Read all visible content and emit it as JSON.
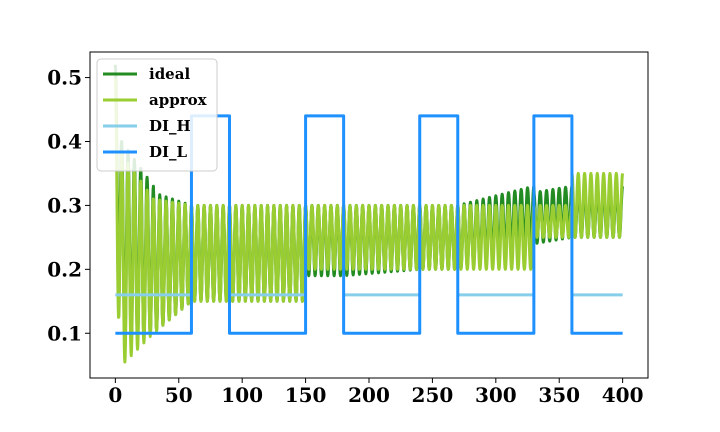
{
  "chart_data": {
    "type": "line",
    "title": "",
    "xlabel": "",
    "ylabel": "",
    "xlim": [
      -20,
      420
    ],
    "ylim": [
      0.03,
      0.54
    ],
    "xticks": [
      0,
      50,
      100,
      150,
      200,
      250,
      300,
      350,
      400
    ],
    "yticks": [
      0.1,
      0.2,
      0.3,
      0.4,
      0.5
    ],
    "grid": false,
    "legend_position": "top-left",
    "series": [
      {
        "name": "ideal",
        "color": "#228B22",
        "kind": "oscillation",
        "period": 5,
        "segments": [
          {
            "x": [
              0,
              5
            ],
            "low": [
              0.3,
              0.08
            ],
            "high": [
              0.52,
              0.4
            ]
          },
          {
            "x": [
              5,
              30
            ],
            "low": [
              0.08,
              0.1
            ],
            "high": [
              0.4,
              0.33
            ]
          },
          {
            "x": [
              30,
              60
            ],
            "low": [
              0.1,
              0.15
            ],
            "high": [
              0.32,
              0.3
            ]
          },
          {
            "x": [
              60,
              90
            ],
            "low": [
              0.15,
              0.15
            ],
            "high": [
              0.3,
              0.3
            ]
          },
          {
            "x": [
              90,
              150
            ],
            "low": [
              0.15,
              0.15
            ],
            "high": [
              0.3,
              0.3
            ]
          },
          {
            "x": [
              150,
              180
            ],
            "low": [
              0.19,
              0.19
            ],
            "high": [
              0.3,
              0.3
            ]
          },
          {
            "x": [
              180,
              240
            ],
            "low": [
              0.19,
              0.2
            ],
            "high": [
              0.3,
              0.3
            ]
          },
          {
            "x": [
              240,
              270
            ],
            "low": [
              0.2,
              0.2
            ],
            "high": [
              0.3,
              0.3
            ]
          },
          {
            "x": [
              270,
              330
            ],
            "low": [
              0.2,
              0.24
            ],
            "high": [
              0.3,
              0.33
            ]
          },
          {
            "x": [
              330,
              360
            ],
            "low": [
              0.24,
              0.25
            ],
            "high": [
              0.32,
              0.33
            ]
          },
          {
            "x": [
              360,
              400
            ],
            "low": [
              0.25,
              0.25
            ],
            "high": [
              0.33,
              0.33
            ]
          }
        ]
      },
      {
        "name": "approx",
        "color": "#9ACD32",
        "kind": "oscillation",
        "period": 5,
        "segments": [
          {
            "x": [
              0,
              5
            ],
            "low": [
              0.2,
              0.05
            ],
            "high": [
              0.5,
              0.38
            ]
          },
          {
            "x": [
              5,
              30
            ],
            "low": [
              0.05,
              0.1
            ],
            "high": [
              0.38,
              0.31
            ]
          },
          {
            "x": [
              30,
              60
            ],
            "low": [
              0.1,
              0.15
            ],
            "high": [
              0.31,
              0.3
            ]
          },
          {
            "x": [
              60,
              90
            ],
            "low": [
              0.15,
              0.15
            ],
            "high": [
              0.3,
              0.3
            ]
          },
          {
            "x": [
              90,
              150
            ],
            "low": [
              0.15,
              0.15
            ],
            "high": [
              0.3,
              0.3
            ]
          },
          {
            "x": [
              150,
              180
            ],
            "low": [
              0.2,
              0.2
            ],
            "high": [
              0.3,
              0.3
            ]
          },
          {
            "x": [
              180,
              240
            ],
            "low": [
              0.2,
              0.2
            ],
            "high": [
              0.3,
              0.3
            ]
          },
          {
            "x": [
              240,
              330
            ],
            "low": [
              0.2,
              0.2
            ],
            "high": [
              0.3,
              0.3
            ]
          },
          {
            "x": [
              330,
              360
            ],
            "low": [
              0.25,
              0.25
            ],
            "high": [
              0.3,
              0.3
            ]
          },
          {
            "x": [
              360,
              400
            ],
            "low": [
              0.25,
              0.25
            ],
            "high": [
              0.35,
              0.35
            ]
          }
        ]
      },
      {
        "name": "DI_H",
        "color": "#87CEEB",
        "kind": "steps",
        "points": [
          [
            0,
            0.16
          ],
          [
            60,
            0.16
          ],
          [
            60,
            null
          ],
          [
            90,
            null
          ],
          [
            90,
            0.16
          ],
          [
            150,
            0.16
          ],
          [
            150,
            null
          ],
          [
            180,
            null
          ],
          [
            180,
            0.16
          ],
          [
            240,
            0.16
          ],
          [
            240,
            null
          ],
          [
            270,
            null
          ],
          [
            270,
            0.16
          ],
          [
            330,
            0.16
          ],
          [
            330,
            null
          ],
          [
            360,
            null
          ],
          [
            360,
            0.16
          ],
          [
            400,
            0.16
          ]
        ]
      },
      {
        "name": "DI_L",
        "color": "#1E90FF",
        "kind": "steps",
        "points": [
          [
            0,
            0.1
          ],
          [
            60,
            0.1
          ],
          [
            60,
            0.44
          ],
          [
            90,
            0.44
          ],
          [
            90,
            0.1
          ],
          [
            150,
            0.1
          ],
          [
            150,
            0.44
          ],
          [
            180,
            0.44
          ],
          [
            180,
            0.1
          ],
          [
            240,
            0.1
          ],
          [
            240,
            0.44
          ],
          [
            270,
            0.44
          ],
          [
            270,
            0.1
          ],
          [
            330,
            0.1
          ],
          [
            330,
            0.44
          ],
          [
            360,
            0.44
          ],
          [
            360,
            0.1
          ],
          [
            400,
            0.1
          ]
        ]
      }
    ]
  }
}
